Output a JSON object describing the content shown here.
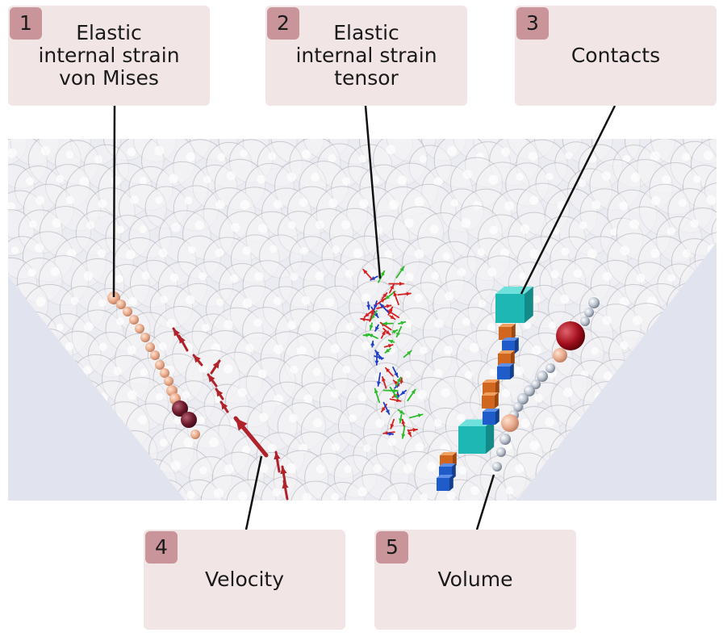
{
  "callouts": [
    {
      "number": "1",
      "label": "Elastic\ninternal strain\nvon Mises"
    },
    {
      "number": "2",
      "label": "Elastic\ninternal strain\ntensor"
    },
    {
      "number": "3",
      "label": "Contacts"
    },
    {
      "number": "4",
      "label": "Velocity"
    },
    {
      "number": "5",
      "label": "Volume"
    }
  ],
  "colors": {
    "callout_bg": "#f2e5e6",
    "badge_bg": "#c9949a",
    "scene_bg": "#e1e3ee",
    "particle_fill": "#f4f4f6",
    "leader_line": "#111111"
  }
}
